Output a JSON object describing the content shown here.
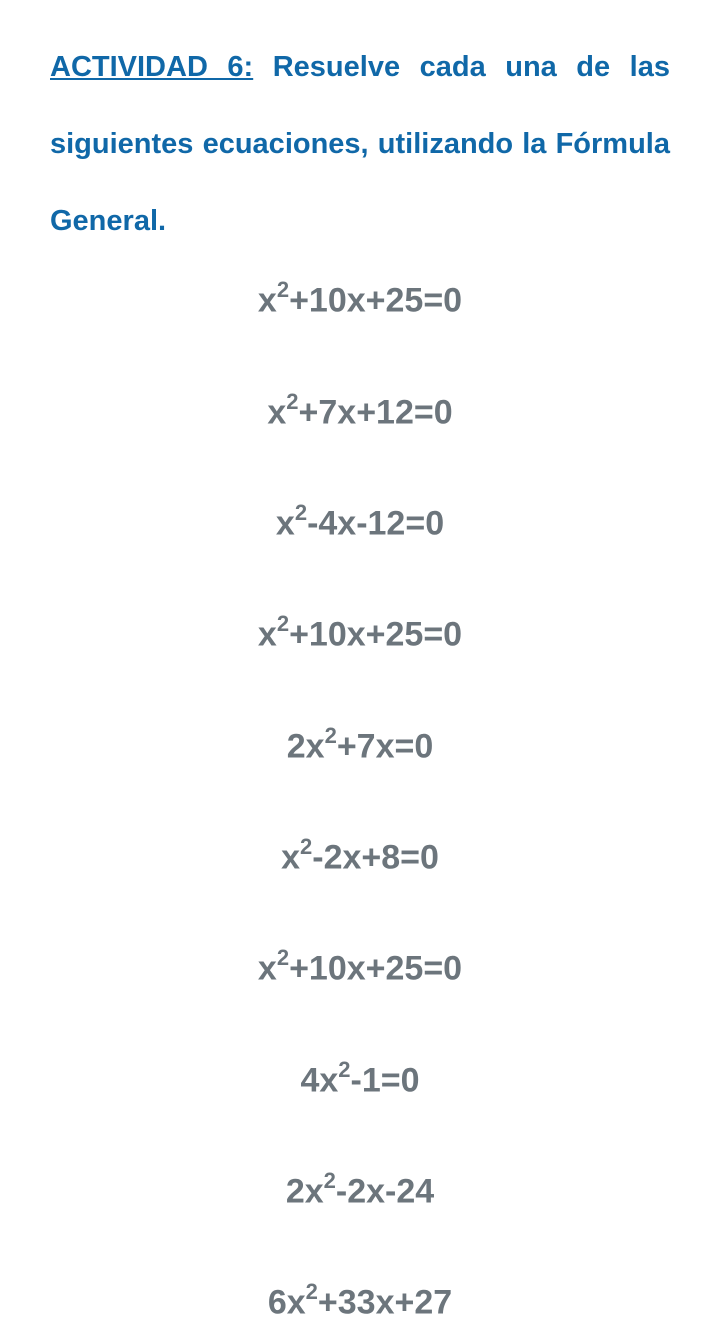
{
  "header": {
    "activity_label": "ACTIVIDAD 6:",
    "instruction_line1": " Resuelve cada una de las",
    "instruction_line2": "siguientes ecuaciones, utilizando la Fórmula",
    "instruction_line3": "General."
  },
  "equations": [
    {
      "base1": "x",
      "exp1": "2",
      "rest": "+10x+25=0"
    },
    {
      "base1": "x",
      "exp1": "2",
      "rest": "+7x+12=0"
    },
    {
      "base1": "x",
      "exp1": "2",
      "rest": "-4x-12=0"
    },
    {
      "base1": "x",
      "exp1": "2",
      "rest": "+10x+25=0"
    },
    {
      "prefix": "2",
      "base1": "x",
      "exp1": "2",
      "rest": "+7x=0"
    },
    {
      "base1": "x",
      "exp1": "2",
      "rest": "-2x+8=0"
    },
    {
      "base1": "x",
      "exp1": "2",
      "rest": "+10x+25=0"
    },
    {
      "prefix": "4",
      "base1": "x",
      "exp1": "2",
      "rest": "-1=0"
    },
    {
      "prefix": "2",
      "base1": "x",
      "exp1": "2",
      "rest": "-2x-24"
    },
    {
      "prefix": "6",
      "base1": "x",
      "exp1": "2",
      "rest": "+33x+27"
    }
  ],
  "styling": {
    "header_color": "#1068a8",
    "equation_color": "#6c757c",
    "background_color": "#ffffff",
    "header_fontsize": 29,
    "equation_fontsize": 34,
    "superscript_fontsize": 22,
    "equation_gap": 70
  }
}
